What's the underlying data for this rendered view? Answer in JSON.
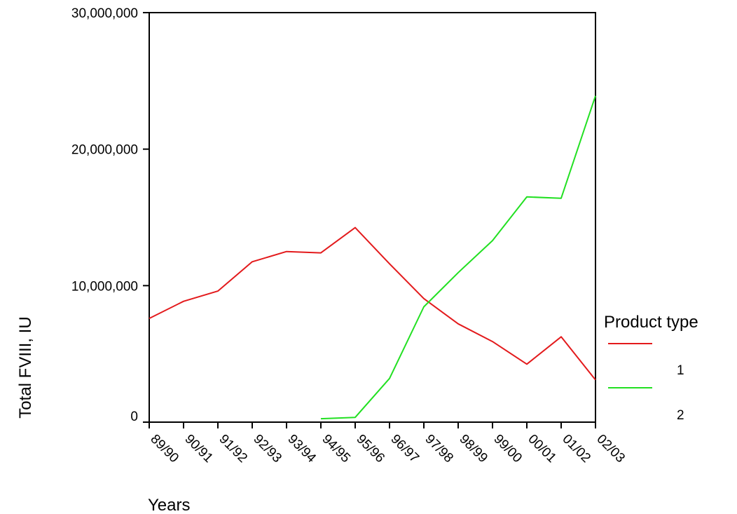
{
  "chart_data": {
    "type": "line",
    "title": "",
    "xlabel": "Years",
    "ylabel": "Total FVIII, IU",
    "categories": [
      "89/90",
      "90/91",
      "91/92",
      "92/93",
      "93/94",
      "94/95",
      "95/96",
      "96/97",
      "97/98",
      "98/99",
      "99/00",
      "00/01",
      "01/02",
      "02/03"
    ],
    "ylim": [
      0,
      30000000
    ],
    "yticks": [
      0,
      10000000,
      20000000,
      30000000
    ],
    "ytick_labels": [
      "0",
      "10,000,000",
      "20,000,000",
      "30,000,000"
    ],
    "grid": false,
    "legend": {
      "title": "Product type",
      "position": "right"
    },
    "series": [
      {
        "name": "1",
        "color": "#e31a1c",
        "values": [
          7600000,
          8850000,
          9600000,
          11750000,
          12500000,
          12400000,
          14250000,
          11600000,
          9050000,
          7200000,
          5900000,
          4250000,
          6250000,
          3100000
        ]
      },
      {
        "name": "2",
        "color": "#22e022",
        "values": [
          null,
          null,
          null,
          null,
          null,
          250000,
          350000,
          3200000,
          8450000,
          10950000,
          13300000,
          16500000,
          16400000,
          23900000
        ]
      }
    ]
  }
}
